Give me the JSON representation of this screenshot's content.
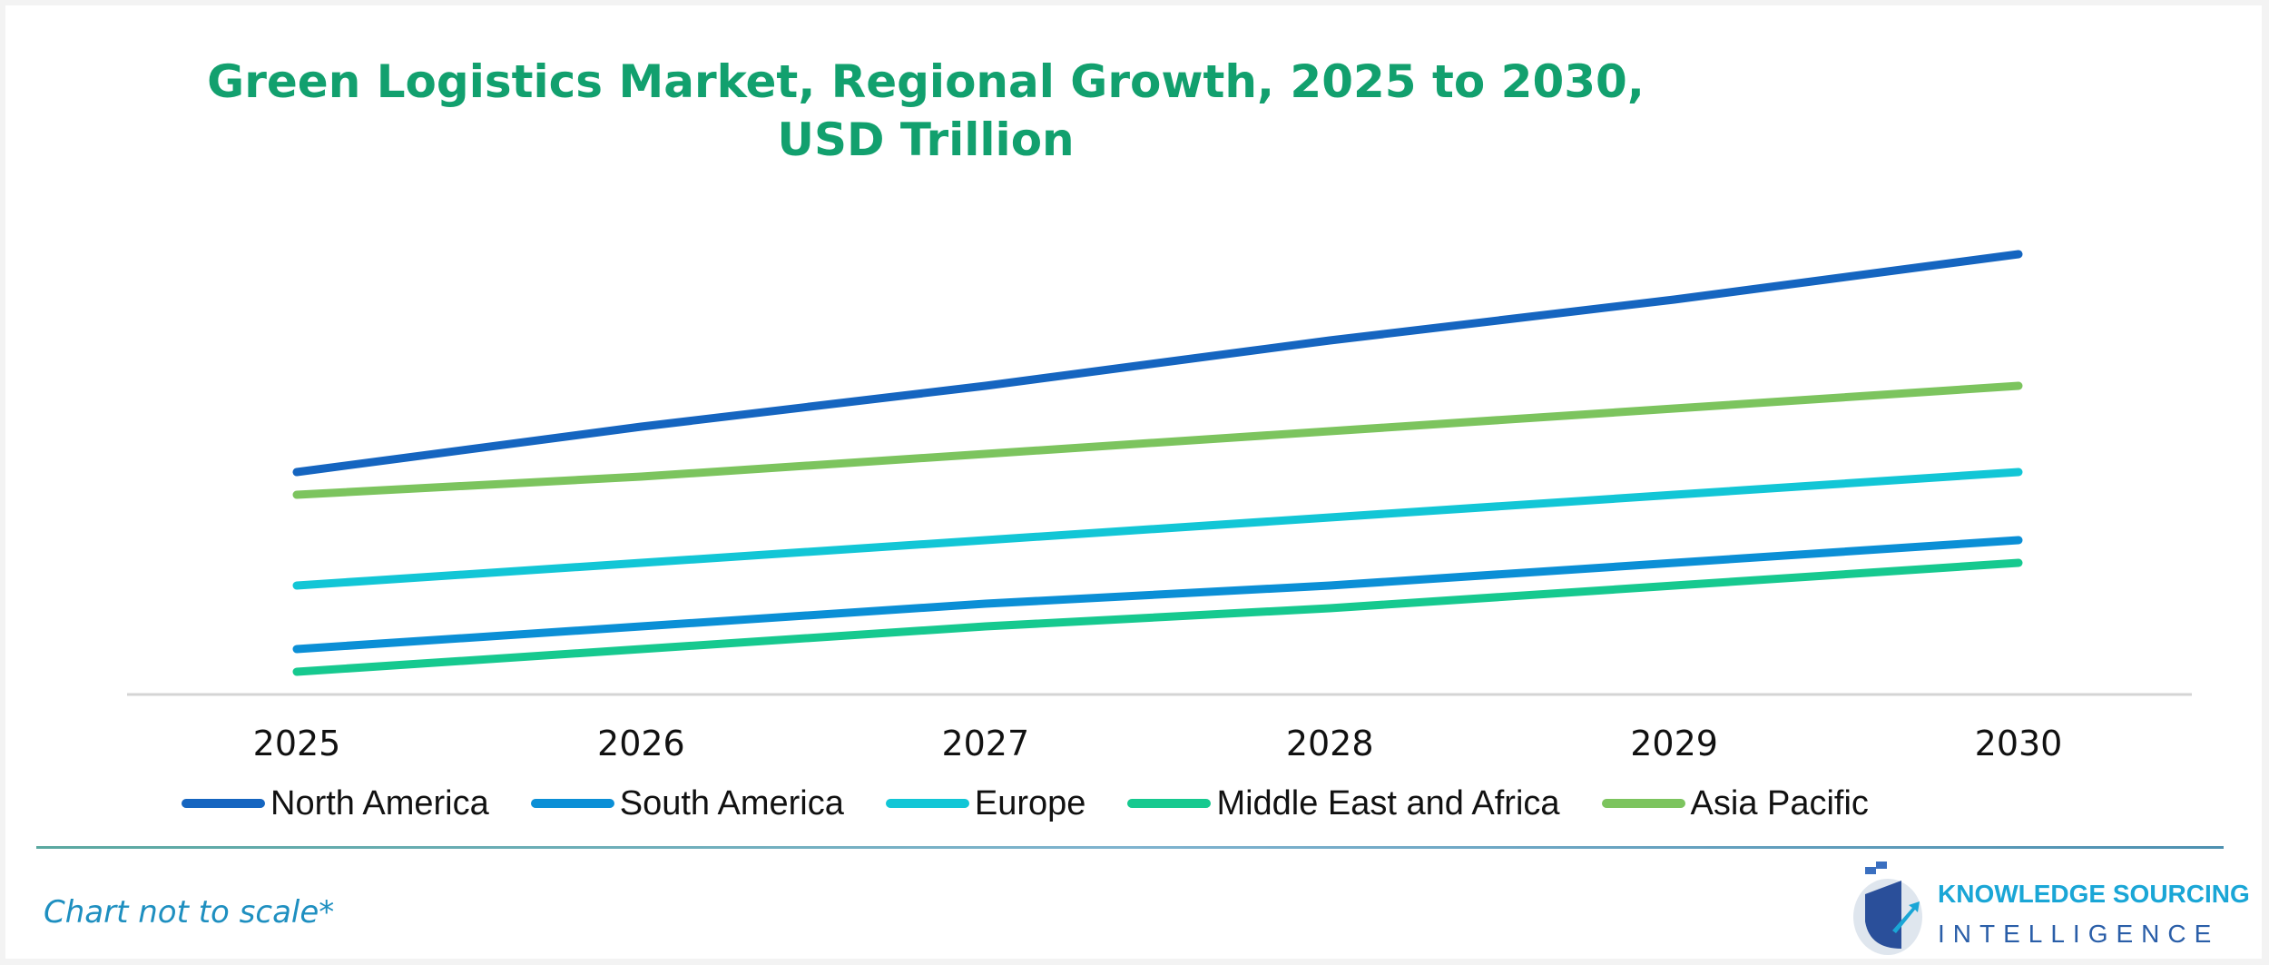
{
  "chart_data": {
    "type": "line",
    "title": "Green Logistics Market, Regional Growth, 2025 to 2030, USD Trillion",
    "title_lines": [
      "Green Logistics Market, Regional Growth, 2025 to 2030,",
      "USD Trillion"
    ],
    "x": [
      "2025",
      "2026",
      "2027",
      "2028",
      "2029",
      "2030"
    ],
    "ylim": [
      0,
      10
    ],
    "grid": false,
    "legend_position": "bottom",
    "series": [
      {
        "name": "North America",
        "color": "#1565c0",
        "values": [
          4.9,
          5.9,
          6.8,
          7.8,
          8.7,
          9.7
        ]
      },
      {
        "name": "South America",
        "color": "#0b8fd6",
        "values": [
          1.0,
          1.5,
          2.0,
          2.4,
          2.9,
          3.4
        ]
      },
      {
        "name": "Europe",
        "color": "#12c6d6",
        "values": [
          2.4,
          2.9,
          3.4,
          3.9,
          4.4,
          4.9
        ]
      },
      {
        "name": "Middle East and Africa",
        "color": "#16c98f",
        "values": [
          0.5,
          1.0,
          1.5,
          1.9,
          2.4,
          2.9
        ]
      },
      {
        "name": "Asia Pacific",
        "color": "#7cc45e",
        "values": [
          4.4,
          4.8,
          5.3,
          5.8,
          6.3,
          6.8
        ]
      }
    ],
    "footnote": "Chart not to scale*"
  },
  "logo": {
    "line1": "KNOWLEDGE SOURCING",
    "line2": "INTELLIGENCE"
  }
}
